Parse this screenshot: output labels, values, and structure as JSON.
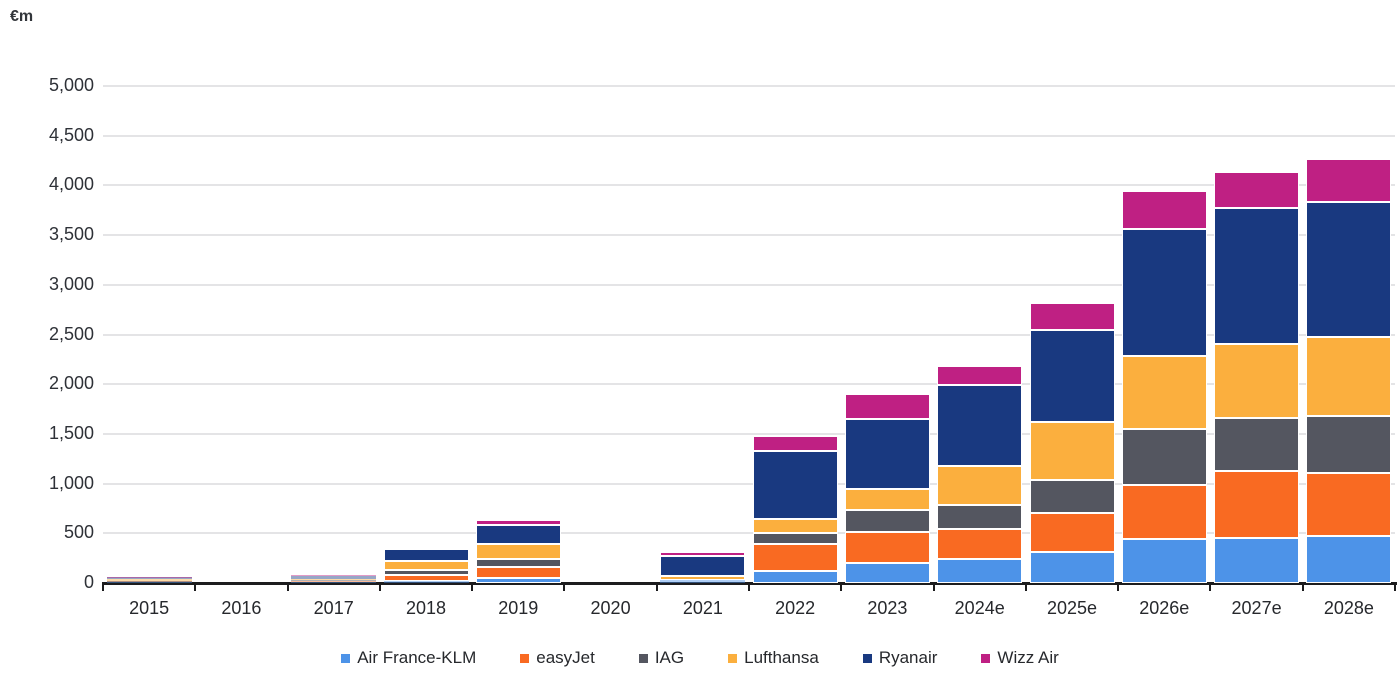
{
  "unit_label": "€m",
  "chart_data": {
    "type": "bar",
    "stacked": true,
    "title": "",
    "unit": "€m",
    "categories": [
      "2015",
      "2016",
      "2017",
      "2018",
      "2019",
      "2020",
      "2021",
      "2022",
      "2023",
      "2024e",
      "2025e",
      "2026e",
      "2027e",
      "2028e"
    ],
    "series": [
      {
        "name": "Air France-KLM",
        "color": "#4d93e8",
        "values": [
          10,
          0,
          10,
          25,
          50,
          0,
          30,
          125,
          200,
          240,
          310,
          440,
          450,
          470
        ]
      },
      {
        "name": "easyJet",
        "color": "#f96a22",
        "values": [
          10,
          0,
          10,
          60,
          115,
          0,
          0,
          270,
          310,
          300,
          390,
          550,
          680,
          640
        ]
      },
      {
        "name": "IAG",
        "color": "#545660",
        "values": [
          5,
          0,
          10,
          50,
          80,
          0,
          0,
          110,
          220,
          250,
          340,
          560,
          530,
          575
        ]
      },
      {
        "name": "Lufthansa",
        "color": "#fbaf3e",
        "values": [
          15,
          0,
          15,
          90,
          145,
          0,
          45,
          135,
          215,
          390,
          580,
          730,
          740,
          790
        ]
      },
      {
        "name": "Ryanair",
        "color": "#193980",
        "values": [
          20,
          0,
          25,
          115,
          195,
          0,
          200,
          685,
          710,
          815,
          930,
          1280,
          1370,
          1360
        ]
      },
      {
        "name": "Wizz Air",
        "color": "#bf2083",
        "values": [
          5,
          0,
          10,
          0,
          45,
          0,
          40,
          150,
          250,
          190,
          270,
          380,
          370,
          430
        ]
      }
    ],
    "totals": [
      65,
      0,
      80,
      340,
      630,
      0,
      315,
      1475,
      1905,
      2185,
      2820,
      3940,
      4140,
      4265
    ],
    "ylim": [
      0,
      5000
    ],
    "ytick_step": 500,
    "ytick_labels": [
      "0",
      "500",
      "1,000",
      "1,500",
      "2,000",
      "2,500",
      "3,000",
      "3,500",
      "4,000",
      "4,500",
      "5,000"
    ],
    "grid": "horizontal",
    "legend_position": "bottom",
    "axis_color": "#1c1c1e",
    "gridline_color": "#e4e4e6"
  }
}
